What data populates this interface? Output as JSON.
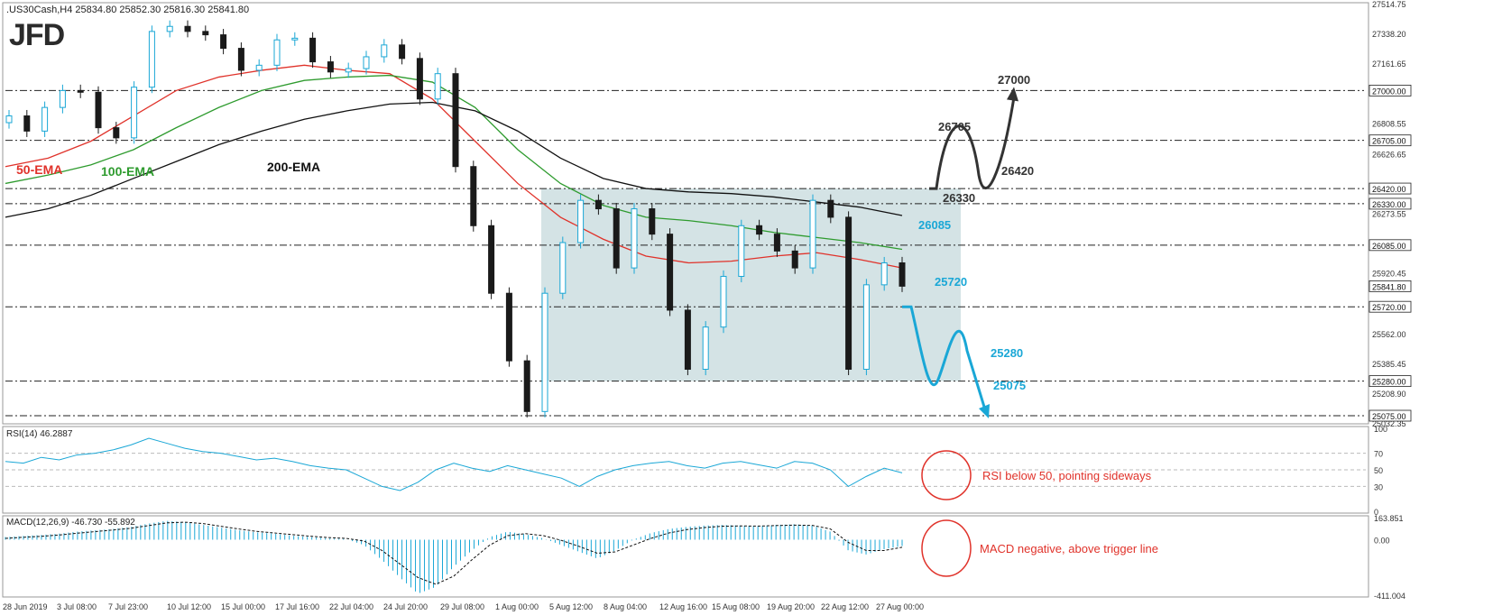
{
  "brand": "JFD",
  "chart_data": [
    {
      "type": "candlestick",
      "header": ".US30Cash,H4  25834.80 25852.30 25816.30 25841.80",
      "ylim": [
        25032.35,
        27514.75
      ],
      "y_ticks": [
        {
          "value": 27514.75,
          "label": "27514.75"
        },
        {
          "value": 27338.2,
          "label": "27338.20"
        },
        {
          "value": 27161.65,
          "label": "27161.65"
        },
        {
          "value": 26808.55,
          "label": "26808.55"
        },
        {
          "value": 26626.65,
          "label": "26626.65"
        },
        {
          "value": 26273.55,
          "label": "26273.55"
        },
        {
          "value": 25920.45,
          "label": "25920.45"
        },
        {
          "value": 25562.0,
          "label": "25562.00"
        },
        {
          "value": 25385.45,
          "label": "25385.45"
        },
        {
          "value": 25208.9,
          "label": "25208.90"
        },
        {
          "value": 25032.35,
          "label": "25032.35"
        }
      ],
      "levels": [
        {
          "value": 27000.0,
          "label": "27000.00",
          "annotation": "27000",
          "color": "#333333"
        },
        {
          "value": 26705.0,
          "label": "26705.00",
          "annotation": "26705",
          "color": "#333333"
        },
        {
          "value": 26420.0,
          "label": "26420.00",
          "annotation": "26420",
          "color": "#333333"
        },
        {
          "value": 26330.0,
          "label": "26330.00",
          "annotation": "26330",
          "color": "#333333"
        },
        {
          "value": 26085.0,
          "label": "26085.00",
          "annotation": "26085",
          "color": "#1aa7d6"
        },
        {
          "value": 25720.0,
          "label": "25720.00",
          "annotation": "25720",
          "color": "#1aa7d6"
        },
        {
          "value": 25280.0,
          "label": "25280.00",
          "annotation": "25280",
          "color": "#1aa7d6"
        },
        {
          "value": 25075.0,
          "label": "25075.00",
          "annotation": "25075",
          "color": "#1aa7d6"
        }
      ],
      "current_price": {
        "value": 25841.8,
        "label": "25841.80"
      },
      "range_box": {
        "top": 26420,
        "bottom": 25280,
        "x_start_label": "1 Aug 00:00"
      },
      "close_series": [
        26850,
        26760,
        26900,
        27000,
        26990,
        26780,
        26720,
        27020,
        27350,
        27380,
        27350,
        27330,
        27250,
        27120,
        27150,
        27300,
        27310,
        27170,
        27110,
        27130,
        27200,
        27270,
        27190,
        26950,
        27100,
        26550,
        26200,
        25800,
        25400,
        25100,
        25800,
        26100,
        26350,
        26300,
        25950,
        26300,
        26150,
        25700,
        25350,
        25600,
        25900,
        26200,
        26150,
        26050,
        25950,
        26350,
        26250,
        25350,
        25850,
        25980,
        25841.8
      ],
      "ema_series": [
        {
          "name": "50-EMA",
          "color": "#e0322a",
          "values": [
            26550,
            26600,
            26700,
            26850,
            27000,
            27080,
            27120,
            27150,
            27120,
            27100,
            26950,
            26700,
            26450,
            26250,
            26120,
            26020,
            25980,
            25990,
            26020,
            26040,
            26000,
            25950
          ]
        },
        {
          "name": "100-EMA",
          "color": "#2e9b2e",
          "values": [
            26450,
            26500,
            26560,
            26650,
            26780,
            26900,
            27000,
            27060,
            27080,
            27090,
            27050,
            26900,
            26650,
            26450,
            26320,
            26250,
            26230,
            26200,
            26160,
            26130,
            26100,
            26060
          ]
        },
        {
          "name": "200-EMA",
          "color": "#111111",
          "values": [
            26250,
            26300,
            26380,
            26480,
            26580,
            26680,
            26760,
            26830,
            26880,
            26920,
            26930,
            26880,
            26760,
            26600,
            26480,
            26420,
            26400,
            26390,
            26370,
            26340,
            26310,
            26260
          ]
        }
      ],
      "projections": [
        {
          "direction": "up",
          "color": "#333333",
          "points": [
            [
              1,
              26420
            ],
            [
              2,
              26705
            ],
            [
              3,
              26420
            ],
            [
              4,
              27000
            ]
          ]
        },
        {
          "direction": "down",
          "color": "#1aa7d6",
          "points": [
            [
              1,
              25720
            ],
            [
              2,
              25280
            ],
            [
              3,
              25562
            ],
            [
              4,
              25075
            ]
          ]
        }
      ]
    },
    {
      "type": "line",
      "title": "RSI(14) 46.2887",
      "ylim": [
        0,
        100
      ],
      "y_ticks": [
        100,
        70,
        50,
        30,
        0
      ],
      "values": [
        60,
        58,
        65,
        62,
        68,
        70,
        74,
        80,
        88,
        82,
        76,
        72,
        70,
        66,
        62,
        64,
        60,
        55,
        52,
        50,
        40,
        30,
        25,
        35,
        50,
        58,
        52,
        48,
        55,
        50,
        45,
        40,
        30,
        42,
        50,
        55,
        58,
        60,
        55,
        52,
        58,
        60,
        56,
        52,
        60,
        58,
        50,
        30,
        42,
        52,
        46.29
      ],
      "color": "#1aa7d6",
      "note": "RSI below 50, pointing sideways"
    },
    {
      "type": "bar",
      "title": "MACD(12,26,9) -46.730 -55.892",
      "ylim": [
        -411.004,
        163.851
      ],
      "y_ticks": [
        {
          "value": 163.851,
          "label": "163.851"
        },
        {
          "value": 0.0,
          "label": "0.00"
        },
        {
          "value": -411.004,
          "label": "-411.004"
        }
      ],
      "values": [
        20,
        28,
        35,
        45,
        60,
        70,
        80,
        95,
        120,
        140,
        130,
        110,
        90,
        70,
        55,
        45,
        30,
        20,
        10,
        5,
        -40,
        -150,
        -280,
        -400,
        -350,
        -200,
        -80,
        20,
        60,
        40,
        10,
        -40,
        -90,
        -140,
        -80,
        0,
        50,
        80,
        95,
        105,
        110,
        105,
        100,
        110,
        115,
        105,
        60,
        -80,
        -110,
        -70,
        -46.73
      ],
      "signal": [
        10,
        18,
        25,
        35,
        48,
        60,
        72,
        85,
        105,
        125,
        130,
        120,
        100,
        80,
        62,
        50,
        38,
        26,
        16,
        10,
        -10,
        -80,
        -180,
        -280,
        -330,
        -270,
        -150,
        -40,
        30,
        45,
        30,
        -5,
        -50,
        -100,
        -90,
        -40,
        10,
        50,
        75,
        90,
        100,
        102,
        101,
        105,
        108,
        106,
        80,
        -20,
        -80,
        -80,
        -55.892
      ],
      "color": "#1aa7d6",
      "note": "MACD negative, above trigger line"
    }
  ],
  "x_axis": [
    "28 Jun 2019",
    "3 Jul 08:00",
    "7 Jul 23:00",
    "10 Jul 12:00",
    "15 Jul 00:00",
    "17 Jul 16:00",
    "22 Jul 04:00",
    "24 Jul 20:00",
    "29 Jul 08:00",
    "1 Aug 00:00",
    "5 Aug 12:00",
    "8 Aug 04:00",
    "12 Aug 16:00",
    "15 Aug 08:00",
    "19 Aug 20:00",
    "22 Aug 12:00",
    "27 Aug 00:00"
  ],
  "colors": {
    "bull": "#1aa7d6",
    "bear": "#1a1a1a",
    "box": "#c8dadd",
    "note": "#e0322a",
    "grid": "#c8c8c8"
  }
}
